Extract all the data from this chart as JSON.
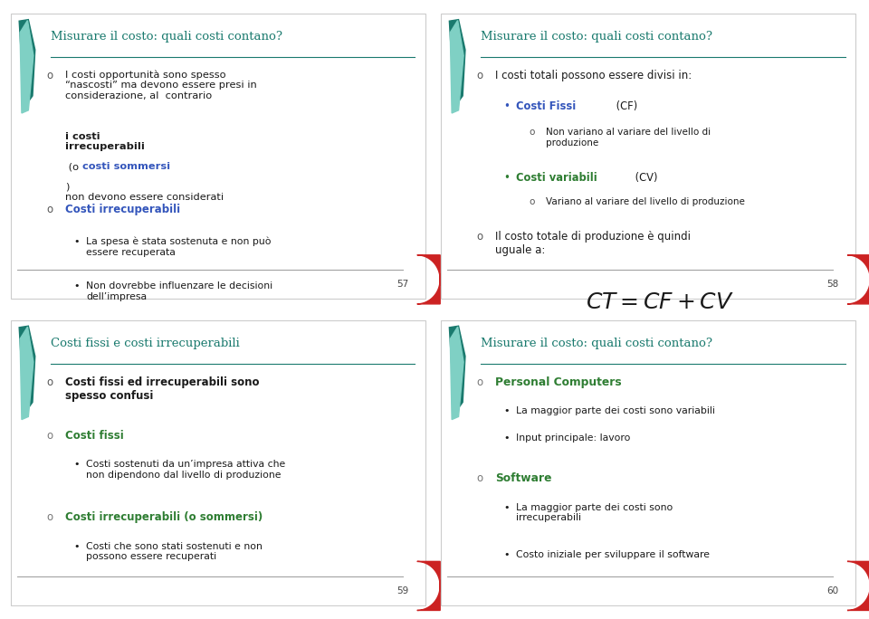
{
  "bg_color": "#ffffff",
  "border_color": "#cccccc",
  "teal_dark": "#1a7a6e",
  "teal_mid": "#4db3a4",
  "teal_light": "#7fd0c4",
  "blue_bold": "#3355bb",
  "green_bold": "#2e7d32",
  "red_accent": "#cc2222",
  "black": "#1a1a1a",
  "gray_text": "#444444",
  "slides": [
    {
      "title": "Misurare il costo: quali costi contano?",
      "page": "57"
    },
    {
      "title": "Misurare il costo: quali costi contano?",
      "page": "58"
    },
    {
      "title": "Costi fissi e costi irrecuperabili",
      "page": "59"
    },
    {
      "title": "Misurare il costo: quali costi contano?",
      "page": "60"
    }
  ]
}
